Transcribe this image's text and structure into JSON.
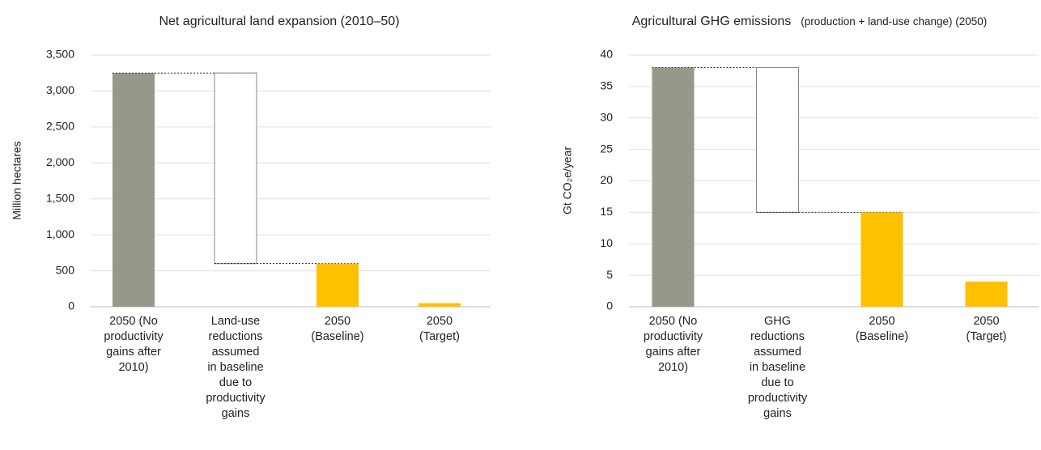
{
  "chart_data": [
    {
      "type": "waterfall",
      "title": "Net agricultural land expansion (2010–50)",
      "y_label": "Million hectares",
      "categories": [
        "2050 (No\nproductivity\ngains after\n2010)",
        "Land-use\nreductions\nassumed\nin baseline\ndue to\nproductivity\ngains",
        "2050\n(Baseline)",
        "2050\n(Target)"
      ],
      "values": [
        3250,
        -2650,
        600,
        50
      ],
      "measure": [
        "absolute",
        "relative",
        "absolute",
        "absolute"
      ],
      "colors": [
        "#97978a",
        "#ffffff",
        "#ffc000",
        "#ffc000"
      ],
      "ylim": [
        0,
        3500
      ],
      "yticks": [
        0,
        500,
        {
          "value": 1000,
          "label": "1,000"
        },
        {
          "value": 1500,
          "label": "1,500"
        },
        {
          "value": 2000,
          "label": "2,000"
        },
        {
          "value": 2500,
          "label": "2,500"
        },
        {
          "value": 3000,
          "label": "3,000"
        },
        {
          "value": 3500,
          "label": "3,500"
        }
      ],
      "grid": true
    },
    {
      "type": "waterfall",
      "title": "Agricultural GHG emissions",
      "subtitle": "(production + land-use change) (2050)",
      "y_label": "Gt CO₂e/year",
      "categories": [
        "2050 (No\nproductivity\ngains after\n2010)",
        "GHG\nreductions\nassumed\nin baseline\ndue to\nproductivity\ngains",
        "2050\n(Baseline)",
        "2050\n(Target)"
      ],
      "values": [
        38,
        -23,
        15,
        4
      ],
      "measure": [
        "absolute",
        "relative",
        "absolute",
        "absolute"
      ],
      "colors": [
        "#97978a",
        "#ffffff",
        "#ffc000",
        "#ffc000"
      ],
      "ylim": [
        0,
        40
      ],
      "yticks": [
        0,
        5,
        10,
        15,
        20,
        25,
        30,
        35,
        40
      ],
      "grid": true
    }
  ]
}
